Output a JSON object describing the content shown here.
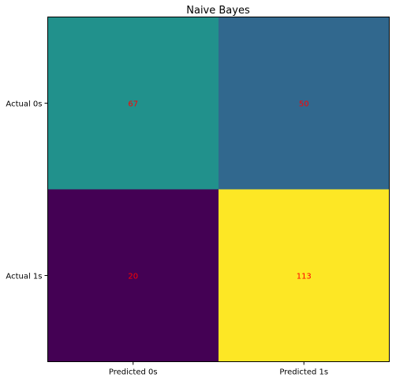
{
  "chart_data": {
    "type": "heatmap",
    "title": "Naive Bayes",
    "x_tick_labels": [
      "Predicted 0s",
      "Predicted 1s"
    ],
    "y_tick_labels": [
      "Actual 0s",
      "Actual 1s"
    ],
    "values": [
      [
        67,
        50
      ],
      [
        20,
        113
      ]
    ],
    "colormap": "viridis",
    "cell_colors": [
      [
        "#21918c",
        "#31688e"
      ],
      [
        "#440154",
        "#fde725"
      ]
    ],
    "annotation_color": "#ff0000",
    "grid": false
  }
}
